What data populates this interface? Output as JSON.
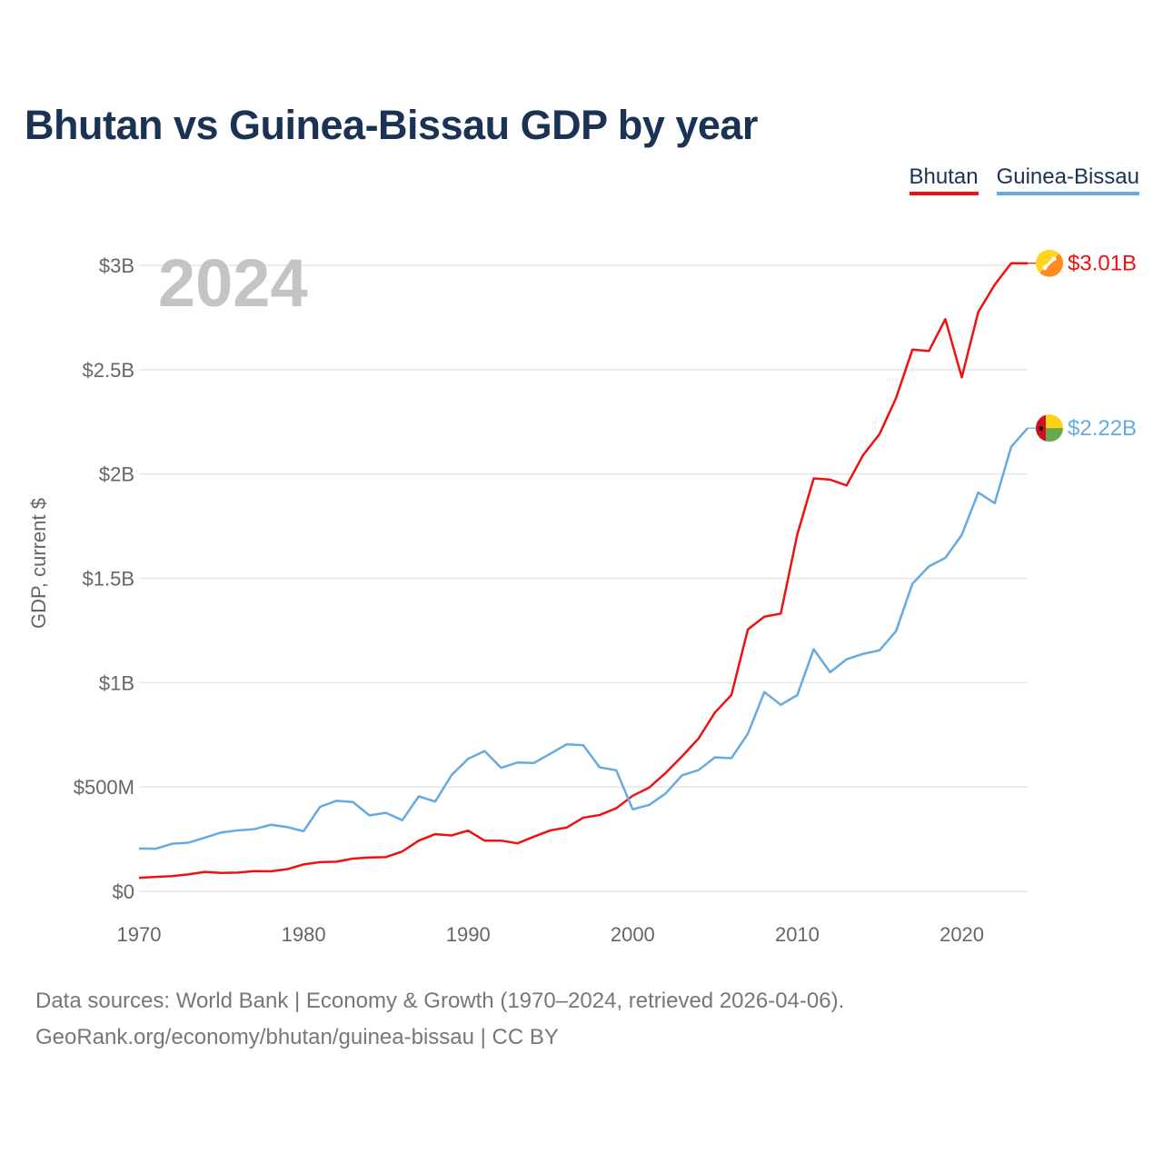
{
  "title": "Bhutan vs Guinea-Bissau GDP by year",
  "legend": [
    {
      "name": "Bhutan",
      "color": "#ee1111"
    },
    {
      "name": "Guinea-Bissau",
      "color": "#66aae2"
    }
  ],
  "year_label": "2024",
  "source_lines": [
    "Data sources: World Bank | Economy & Growth (1970–2024, retrieved 2026-04-06).",
    "GeoRank.org/economy/bhutan/guinea-bissau | CC BY"
  ],
  "chart_data": {
    "type": "line",
    "title": "Bhutan vs Guinea-Bissau GDP by year",
    "xlabel": "",
    "ylabel": "GDP, current $",
    "xlim": [
      1970,
      2024
    ],
    "ylim": [
      0,
      3000000000
    ],
    "grid": true,
    "x_ticks": [
      1970,
      1980,
      1990,
      2000,
      2010,
      2020
    ],
    "x_tick_labels": [
      "1970",
      "1980",
      "1990",
      "2000",
      "2010",
      "2020"
    ],
    "y_ticks": [
      0,
      500000000,
      1000000000,
      1500000000,
      2000000000,
      2500000000,
      3000000000
    ],
    "y_tick_labels": [
      "$0",
      "$500M",
      "$1B",
      "$1.5B",
      "$2B",
      "$2.5B",
      "$3B"
    ],
    "legend_position": "top-right",
    "x": [
      1970,
      1971,
      1972,
      1973,
      1974,
      1975,
      1976,
      1977,
      1978,
      1979,
      1980,
      1981,
      1982,
      1983,
      1984,
      1985,
      1986,
      1987,
      1988,
      1989,
      1990,
      1991,
      1992,
      1993,
      1994,
      1995,
      1996,
      1997,
      1998,
      1999,
      2000,
      2001,
      2002,
      2003,
      2004,
      2005,
      2006,
      2007,
      2008,
      2009,
      2010,
      2011,
      2012,
      2013,
      2014,
      2015,
      2016,
      2017,
      2018,
      2019,
      2020,
      2021,
      2022,
      2023,
      2024
    ],
    "series": [
      {
        "name": "Bhutan",
        "color": "#ee1111",
        "end_label": "$3.01B",
        "flag": "bhutan-flag",
        "values": [
          65000000,
          69000000,
          73000000,
          81000000,
          93000000,
          88000000,
          90000000,
          97000000,
          96000000,
          106000000,
          129000000,
          140000000,
          142000000,
          157000000,
          162000000,
          164000000,
          191000000,
          243000000,
          274000000,
          268000000,
          291000000,
          243000000,
          243000000,
          230000000,
          262000000,
          292000000,
          306000000,
          353000000,
          366000000,
          398000000,
          458000000,
          497000000,
          567000000,
          647000000,
          732000000,
          857000000,
          941000000,
          1255000000,
          1316000000,
          1331000000,
          1709000000,
          1979000000,
          1973000000,
          1945000000,
          2090000000,
          2191000000,
          2363000000,
          2596000000,
          2589000000,
          2742000000,
          2463000000,
          2776000000,
          2907000000,
          3010000000,
          3010000000
        ]
      },
      {
        "name": "Guinea-Bissau",
        "color": "#66aae2",
        "end_label": "$2.22B",
        "flag": "guinea-bissau-flag",
        "values": [
          205000000,
          204000000,
          228000000,
          233000000,
          257000000,
          282000000,
          292000000,
          298000000,
          319000000,
          308000000,
          288000000,
          405000000,
          434000000,
          428000000,
          364000000,
          376000000,
          341000000,
          455000000,
          430000000,
          558000000,
          635000000,
          672000000,
          592000000,
          617000000,
          615000000,
          660000000,
          705000000,
          700000000,
          594000000,
          580000000,
          393000000,
          414000000,
          469000000,
          556000000,
          581000000,
          642000000,
          638000000,
          755000000,
          955000000,
          894000000,
          940000000,
          1160000000,
          1050000000,
          1112000000,
          1138000000,
          1155000000,
          1246000000,
          1474000000,
          1557000000,
          1598000000,
          1708000000,
          1911000000,
          1860000000,
          2130000000,
          2220000000
        ]
      }
    ]
  }
}
